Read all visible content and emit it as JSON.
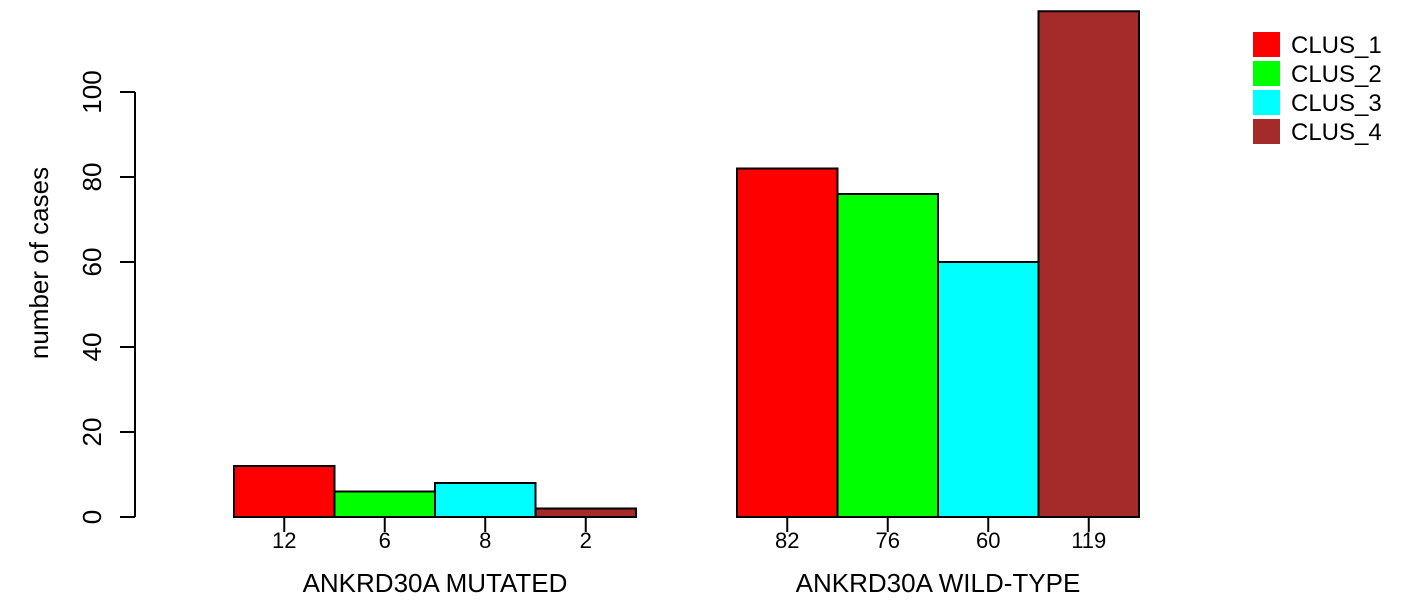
{
  "chart_data": {
    "type": "bar",
    "ylabel": "number of cases",
    "ylim": [
      0,
      120
    ],
    "yticks": [
      0,
      20,
      40,
      60,
      80,
      100
    ],
    "grid": false,
    "legend_position": "top-right",
    "groups": [
      {
        "label": "ANKRD30A MUTATED",
        "values": [
          12,
          6,
          8,
          2
        ],
        "value_labels": [
          "12",
          "6",
          "8",
          "2"
        ]
      },
      {
        "label": "ANKRD30A WILD-TYPE",
        "values": [
          82,
          76,
          60,
          119
        ],
        "value_labels": [
          "82",
          "76",
          "60",
          "119"
        ]
      }
    ],
    "series": [
      {
        "name": "CLUS_1",
        "color": "#ff0000"
      },
      {
        "name": "CLUS_2",
        "color": "#00ff00"
      },
      {
        "name": "CLUS_3",
        "color": "#00ffff"
      },
      {
        "name": "CLUS_4",
        "color": "#a52a2a"
      }
    ]
  }
}
